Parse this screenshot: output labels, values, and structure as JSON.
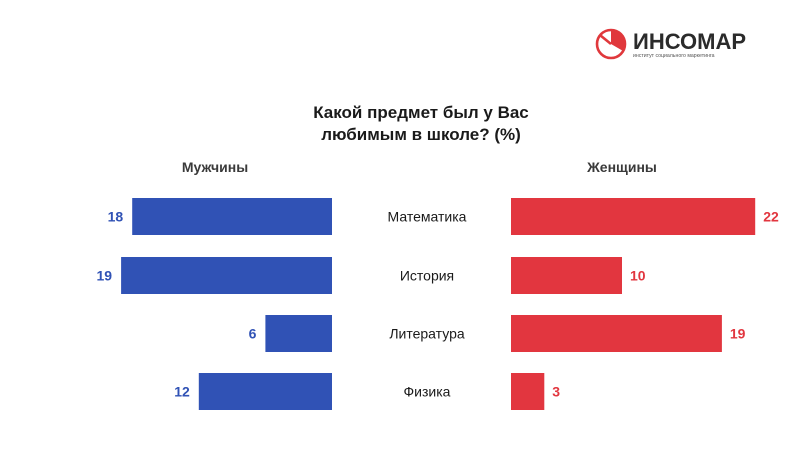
{
  "logo": {
    "name": "ИНСОМАР",
    "tagline": "институт социального маркетинга",
    "accent_color": "#e0383c"
  },
  "chart_data": {
    "type": "bar",
    "title_lines": [
      "Какой предмет был у Вас",
      "любимым в школе? (%)"
    ],
    "categories": [
      "Математика",
      "История",
      "Литература",
      "Физика"
    ],
    "series": [
      {
        "name": "Мужчины",
        "color": "#3052b5",
        "values": [
          18,
          19,
          6,
          12
        ]
      },
      {
        "name": "Женщины",
        "color": "#e2363f",
        "values": [
          22,
          10,
          19,
          3
        ]
      }
    ]
  }
}
